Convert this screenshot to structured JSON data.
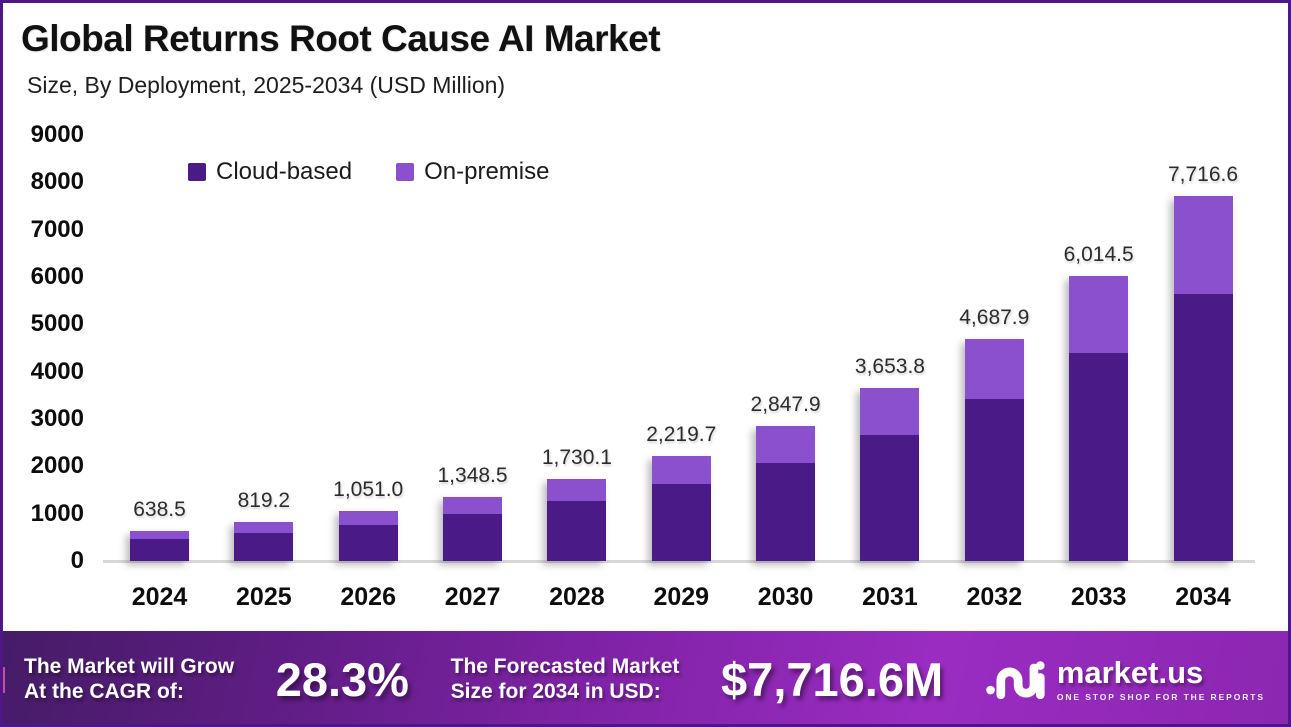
{
  "header": {
    "title": "Global Returns Root Cause AI Market",
    "subtitle": "Size, By Deployment, 2025-2034 (USD Million)"
  },
  "legend": [
    {
      "label": "Cloud-based",
      "color": "#4a1b87"
    },
    {
      "label": "On-premise",
      "color": "#8b50ce"
    }
  ],
  "chart_data": {
    "type": "bar",
    "stacked": true,
    "title": "Global Returns Root Cause AI Market",
    "subtitle": "Size, By Deployment, 2025-2034 (USD Million)",
    "categories": [
      "2024",
      "2025",
      "2026",
      "2027",
      "2028",
      "2029",
      "2030",
      "2031",
      "2032",
      "2033",
      "2034"
    ],
    "series": [
      {
        "name": "Cloud-based",
        "color": "#4a1b87",
        "values": [
          466.1,
          598.0,
          767.2,
          984.4,
          1263.0,
          1620.4,
          2079.0,
          2667.3,
          3422.2,
          4390.6,
          5633.1
        ]
      },
      {
        "name": "On-premise",
        "color": "#8b50ce",
        "values": [
          172.4,
          221.2,
          283.8,
          364.1,
          467.1,
          599.3,
          768.9,
          986.5,
          1265.7,
          1623.9,
          2083.5
        ]
      }
    ],
    "totals": [
      638.5,
      819.2,
      1051.0,
      1348.5,
      1730.1,
      2219.7,
      2847.9,
      3653.8,
      4687.9,
      6014.5,
      7716.6
    ],
    "total_labels": [
      "638.5",
      "819.2",
      "1,051.0",
      "1,348.5",
      "1,730.1",
      "2,219.7",
      "2,847.9",
      "3,653.8",
      "4,687.9",
      "6,014.5",
      "7,716.6"
    ],
    "xlabel": "",
    "ylabel": "",
    "ylim": [
      0,
      9000
    ],
    "yticks": [
      0,
      1000,
      2000,
      3000,
      4000,
      5000,
      6000,
      7000,
      8000,
      9000
    ],
    "grid": false,
    "legend_position": "top-left",
    "units": "USD Million"
  },
  "footer": {
    "growth_label_line1": "The Market will Grow",
    "growth_label_line2": "At the CAGR of:",
    "cagr_value": "28.3%",
    "forecast_label_line1": "The Forecasted Market",
    "forecast_label_line2": "Size for 2034 in USD:",
    "forecast_value": "$7,716.6M",
    "brand": {
      "name": "market.us",
      "tagline": "ONE STOP SHOP FOR THE REPORTS"
    }
  }
}
